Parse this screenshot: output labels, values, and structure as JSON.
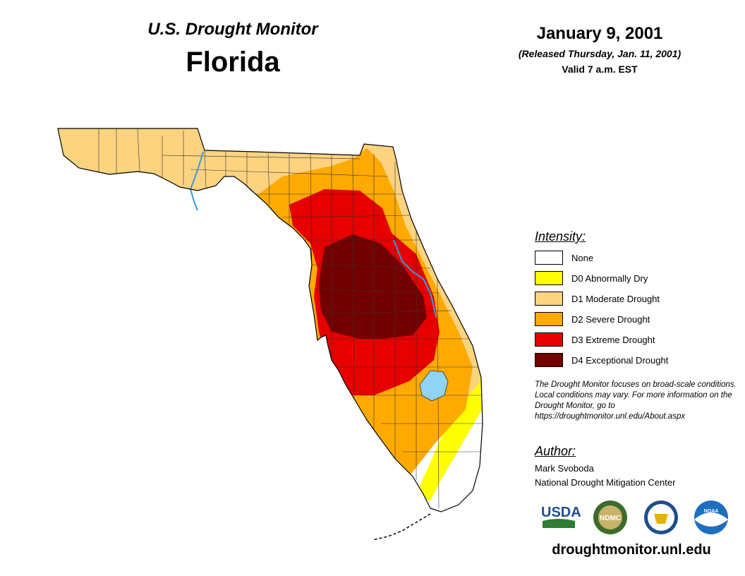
{
  "header": {
    "product": "U.S. Drought Monitor",
    "state": "Florida",
    "date": "January 9, 2001",
    "released": "(Released Thursday, Jan. 11, 2001)",
    "valid": "Valid 7 a.m. EST"
  },
  "legend": {
    "title": "Intensity:",
    "items": [
      {
        "label": "None",
        "color": "#ffffff"
      },
      {
        "label": "D0 Abnormally Dry",
        "color": "#ffff00"
      },
      {
        "label": "D1 Moderate Drought",
        "color": "#fcd37f"
      },
      {
        "label": "D2 Severe Drought",
        "color": "#ffaa00"
      },
      {
        "label": "D3 Extreme Drought",
        "color": "#e60000"
      },
      {
        "label": "D4 Exceptional Drought",
        "color": "#730000"
      }
    ]
  },
  "note": "The Drought Monitor focuses on broad-scale conditions. Local conditions may vary. For more information on the Drought Monitor, go to https://droughtmonitor.unl.edu/About.aspx",
  "author": {
    "title": "Author:",
    "name": "Mark Svoboda",
    "org": "National Drought Mitigation Center"
  },
  "logos": {
    "usda": "USDA",
    "ndmc": "NDMC",
    "noaa": "NOAA"
  },
  "website": "droughtmonitor.unl.edu",
  "colors": {
    "none": "#ffffff",
    "d0": "#ffff00",
    "d1": "#fcd37f",
    "d2": "#ffaa00",
    "d3": "#e60000",
    "d4": "#730000",
    "water": "#8fd3f5",
    "river": "#3a9ad9"
  }
}
